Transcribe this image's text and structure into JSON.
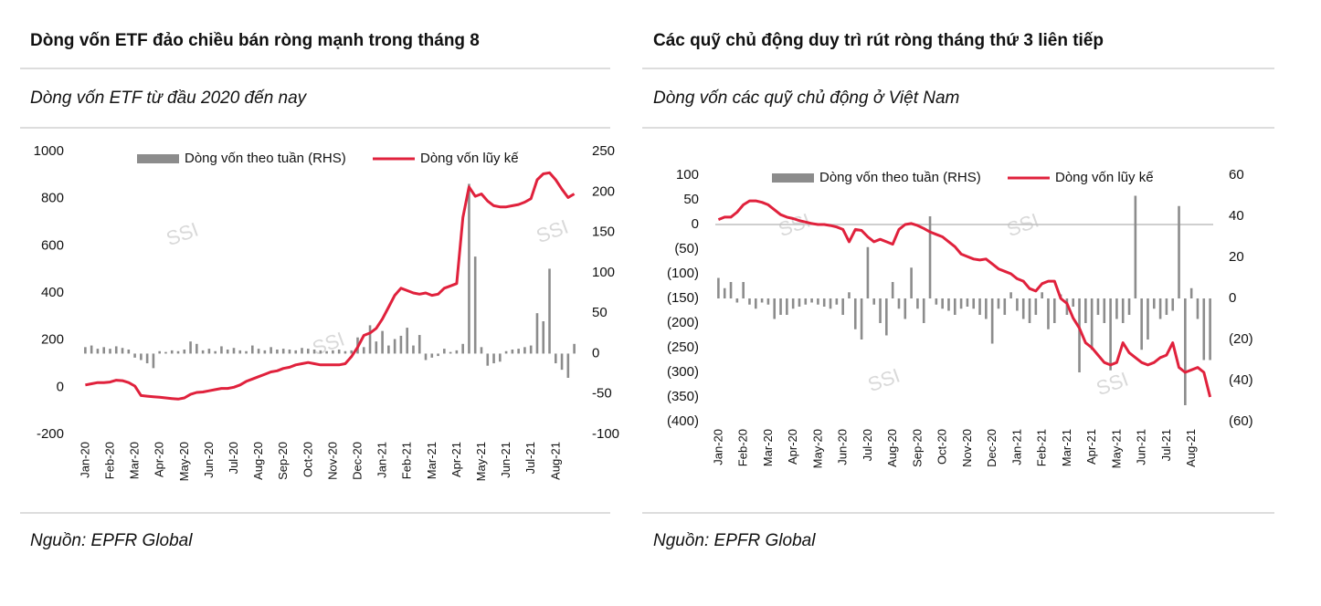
{
  "left": {
    "heading": "Dòng vốn ETF đảo chiều bán ròng mạnh trong tháng 8",
    "subtitle": "Dòng vốn ETF từ đầu 2020 đến nay",
    "source": "Nguồn: EPFR Global",
    "chart_data": {
      "type": "bar-line",
      "watermark": "SSI",
      "categories": [
        "Jan-20",
        null,
        null,
        null,
        "Feb-20",
        null,
        null,
        null,
        "Mar-20",
        null,
        null,
        null,
        "Apr-20",
        null,
        null,
        null,
        "May-20",
        null,
        null,
        null,
        "Jun-20",
        null,
        null,
        null,
        "Jul-20",
        null,
        null,
        null,
        "Aug-20",
        null,
        null,
        null,
        "Sep-20",
        null,
        null,
        null,
        "Oct-20",
        null,
        null,
        null,
        "Nov-20",
        null,
        null,
        null,
        "Dec-20",
        null,
        null,
        null,
        "Jan-21",
        null,
        null,
        null,
        "Feb-21",
        null,
        null,
        null,
        "Mar-21",
        null,
        null,
        null,
        "Apr-21",
        null,
        null,
        null,
        "May-21",
        null,
        null,
        null,
        "Jun-21",
        null,
        null,
        null,
        "Jul-21",
        null,
        null,
        null,
        "Aug-21",
        null,
        null,
        null
      ],
      "series": [
        {
          "name": "Dòng vốn theo tuần (RHS)",
          "kind": "bar",
          "axis": "y2",
          "color": "#8c8c8c",
          "values": [
            8,
            10,
            6,
            8,
            6,
            9,
            7,
            5,
            -5,
            -8,
            -12,
            -18,
            3,
            2,
            4,
            3,
            5,
            15,
            12,
            4,
            6,
            3,
            9,
            5,
            7,
            4,
            3,
            10,
            6,
            4,
            8,
            5,
            6,
            5,
            4,
            7,
            6,
            5,
            4,
            3,
            4,
            5,
            3,
            4,
            20,
            8,
            35,
            15,
            28,
            10,
            18,
            22,
            32,
            10,
            23,
            -8,
            -5,
            -3,
            6,
            2,
            4,
            12,
            210,
            120,
            8,
            -15,
            -12,
            -10,
            3,
            5,
            6,
            8,
            10,
            50,
            40,
            105,
            -12,
            -20,
            -30,
            12
          ]
        },
        {
          "name": "Dòng vốn lũy kế",
          "kind": "line",
          "color": "#e0213c",
          "values": [
            10,
            15,
            20,
            20,
            22,
            30,
            28,
            20,
            5,
            -35,
            -38,
            -40,
            -42,
            -45,
            -48,
            -50,
            -45,
            -30,
            -22,
            -20,
            -15,
            -10,
            -5,
            -5,
            0,
            10,
            25,
            35,
            45,
            55,
            65,
            70,
            80,
            85,
            95,
            100,
            105,
            100,
            95,
            95,
            95,
            95,
            100,
            130,
            170,
            220,
            230,
            250,
            290,
            340,
            390,
            420,
            410,
            400,
            395,
            400,
            390,
            395,
            420,
            430,
            440,
            720,
            850,
            810,
            820,
            790,
            770,
            765,
            765,
            770,
            775,
            785,
            800,
            880,
            905,
            910,
            880,
            840,
            805,
            820
          ]
        }
      ],
      "ylim": [
        -200,
        1000
      ],
      "yticks": [
        -200,
        0,
        200,
        400,
        600,
        800,
        1000
      ],
      "y2lim": [
        -100,
        250
      ],
      "y2ticks": [
        -100,
        -50,
        0,
        50,
        100,
        150,
        200,
        250
      ]
    }
  },
  "right": {
    "heading": "Các quỹ chủ động duy trì rút ròng tháng thứ 3 liên tiếp",
    "subtitle": "Dòng vốn các quỹ chủ động ở Việt Nam",
    "source": "Nguồn: EPFR Global",
    "chart_data": {
      "type": "bar-line",
      "watermark": "SSI",
      "zero_line": true,
      "negative_tick_color": "#e0213c",
      "categories": [
        "Jan-20",
        null,
        null,
        null,
        "Feb-20",
        null,
        null,
        null,
        "Mar-20",
        null,
        null,
        null,
        "Apr-20",
        null,
        null,
        null,
        "May-20",
        null,
        null,
        null,
        "Jun-20",
        null,
        null,
        null,
        "Jul-20",
        null,
        null,
        null,
        "Aug-20",
        null,
        null,
        null,
        "Sep-20",
        null,
        null,
        null,
        "Oct-20",
        null,
        null,
        null,
        "Nov-20",
        null,
        null,
        null,
        "Dec-20",
        null,
        null,
        null,
        "Jan-21",
        null,
        null,
        null,
        "Feb-21",
        null,
        null,
        null,
        "Mar-21",
        null,
        null,
        null,
        "Apr-21",
        null,
        null,
        null,
        "May-21",
        null,
        null,
        null,
        "Jun-21",
        null,
        null,
        null,
        "Jul-21",
        null,
        null,
        null,
        "Aug-21",
        null,
        null,
        null
      ],
      "series": [
        {
          "name": "Dòng vốn theo tuần (RHS)",
          "kind": "bar",
          "axis": "y2",
          "color": "#8c8c8c",
          "values": [
            10,
            5,
            8,
            -2,
            8,
            -3,
            -5,
            -2,
            -3,
            -10,
            -8,
            -8,
            -5,
            -4,
            -3,
            -2,
            -3,
            -4,
            -5,
            -3,
            -8,
            3,
            -15,
            -20,
            25,
            -3,
            -12,
            -18,
            8,
            -5,
            -10,
            15,
            -5,
            -12,
            40,
            -3,
            -5,
            -6,
            -8,
            -5,
            -4,
            -5,
            -8,
            -10,
            -22,
            -5,
            -8,
            3,
            -6,
            -10,
            -12,
            -8,
            3,
            -15,
            -12,
            2,
            -8,
            -4,
            -36,
            -12,
            -25,
            -8,
            -12,
            -35,
            -10,
            -12,
            -8,
            50,
            -25,
            -20,
            -5,
            -10,
            -8,
            -6,
            45,
            -52,
            5,
            -10,
            -30,
            -30
          ]
        },
        {
          "name": "Dòng vốn lũy kế",
          "kind": "line",
          "color": "#e0213c",
          "values": [
            10,
            15,
            15,
            25,
            40,
            48,
            48,
            45,
            40,
            30,
            20,
            15,
            12,
            8,
            5,
            2,
            0,
            0,
            -2,
            -5,
            -10,
            -35,
            -10,
            -12,
            -25,
            -35,
            -30,
            -35,
            -40,
            -10,
            0,
            2,
            -2,
            -8,
            -15,
            -20,
            -25,
            -35,
            -45,
            -60,
            -65,
            -70,
            -72,
            -70,
            -80,
            -90,
            -95,
            -100,
            -110,
            -115,
            -130,
            -135,
            -120,
            -115,
            -115,
            -150,
            -160,
            -190,
            -210,
            -240,
            -250,
            -265,
            -280,
            -285,
            -280,
            -240,
            -260,
            -270,
            -280,
            -285,
            -280,
            -270,
            -265,
            -240,
            -290,
            -300,
            -295,
            -290,
            -300,
            -350
          ]
        }
      ],
      "ylim": [
        -400,
        100
      ],
      "yticks": [
        {
          "value": -400,
          "label": "(400)"
        },
        {
          "value": -350,
          "label": "(350)"
        },
        {
          "value": -300,
          "label": "(300)"
        },
        {
          "value": -250,
          "label": "(250)"
        },
        {
          "value": -200,
          "label": "(200)"
        },
        {
          "value": -150,
          "label": "(150)"
        },
        {
          "value": -100,
          "label": "(100)"
        },
        {
          "value": -50,
          "label": "(50)"
        },
        0,
        50,
        100
      ],
      "y2lim": [
        -60,
        60
      ],
      "y2ticks": [
        {
          "value": -60,
          "label": "(60)"
        },
        {
          "value": -40,
          "label": "(40)"
        },
        {
          "value": -20,
          "label": "(20)"
        },
        0,
        20,
        40,
        60
      ]
    }
  }
}
